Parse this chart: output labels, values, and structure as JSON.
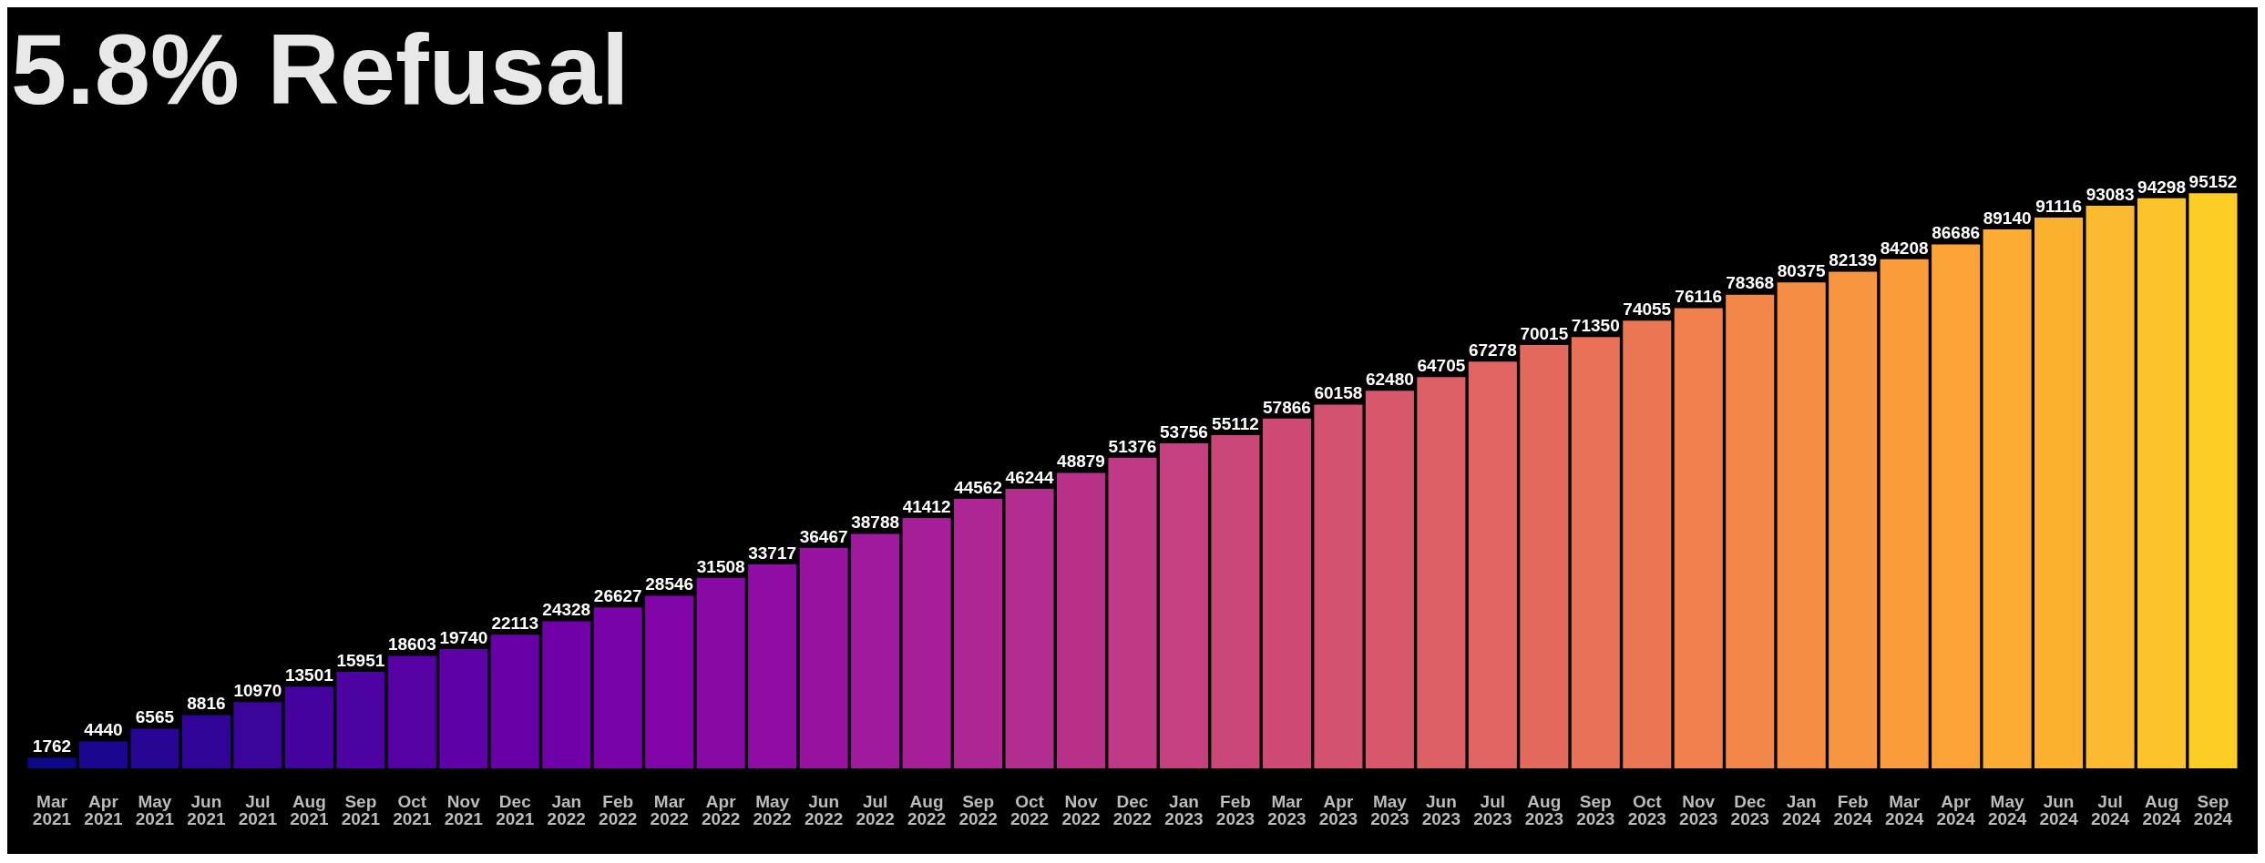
{
  "chart_data": {
    "type": "bar",
    "title": "5.8% Refusal",
    "categories": [
      "Mar 2021",
      "Apr 2021",
      "May 2021",
      "Jun 2021",
      "Jul 2021",
      "Aug 2021",
      "Sep 2021",
      "Oct 2021",
      "Nov 2021",
      "Dec 2021",
      "Jan 2022",
      "Feb 2022",
      "Mar 2022",
      "Apr 2022",
      "May 2022",
      "Jun 2022",
      "Jul 2022",
      "Aug 2022",
      "Sep 2022",
      "Oct 2022",
      "Nov 2022",
      "Dec 2022",
      "Jan 2023",
      "Feb 2023",
      "Mar 2023",
      "Apr 2023",
      "May 2023",
      "Jun 2023",
      "Jul 2023",
      "Aug 2023",
      "Sep 2023",
      "Oct 2023",
      "Nov 2023",
      "Dec 2023",
      "Jan 2024",
      "Feb 2024",
      "Mar 2024",
      "Apr 2024",
      "May 2024",
      "Jun 2024",
      "Jul 2024",
      "Aug 2024",
      "Sep 2024"
    ],
    "values": [
      1762,
      4440,
      6565,
      8816,
      10970,
      13501,
      15951,
      18603,
      19740,
      22113,
      24328,
      26627,
      28546,
      31508,
      33717,
      36467,
      38788,
      41412,
      44562,
      46244,
      48879,
      51376,
      53756,
      55112,
      57866,
      60158,
      62480,
      64705,
      67278,
      70015,
      71350,
      74055,
      76116,
      78368,
      80375,
      82139,
      84208,
      86686,
      89140,
      91116,
      93083,
      94298,
      95152
    ],
    "colors": [
      "#0d0887",
      "#1a0790",
      "#250591",
      "#310498",
      "#3b049b",
      "#44039e",
      "#4d02a2",
      "#5601a4",
      "#5e01a6",
      "#6800a8",
      "#7001a8",
      "#7902a8",
      "#8004a7",
      "#8809a6",
      "#8f0da4",
      "#9813a0",
      "#9f1a9c",
      "#a61e98",
      "#ad2693",
      "#b32c8f",
      "#b83189",
      "#bf3984",
      "#c5407e",
      "#cb4679",
      "#cf4a75",
      "#d35270",
      "#d8576b",
      "#dd5f66",
      "#e16462",
      "#e46a5d",
      "#e87158",
      "#eb7654",
      "#f0804e",
      "#f38749",
      "#f58e44",
      "#f89540",
      "#fa9c3b",
      "#fca337",
      "#fcab33",
      "#fcb22f",
      "#fbba2f",
      "#fcc42a",
      "#fcce25"
    ],
    "tick_labels": "x",
    "data_labels": true,
    "grid": false,
    "legend": false
  }
}
